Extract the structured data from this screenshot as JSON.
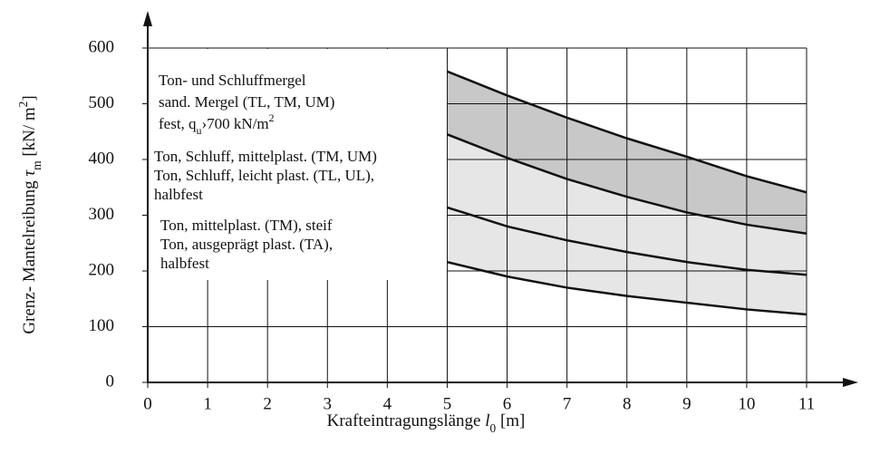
{
  "chart_data": {
    "type": "line",
    "x_label": [
      {
        "text": "Krafteintragungslänge "
      },
      {
        "text": "l",
        "italic": true
      },
      {
        "text": "0",
        "sub": true
      },
      {
        "text": " [m]"
      }
    ],
    "y_label": [
      {
        "text": "Grenz- Mantelreibung "
      },
      {
        "text": "τ",
        "italic": true
      },
      {
        "text": "m",
        "sub": true
      },
      {
        "text": " [kN/ m"
      },
      {
        "text": "2",
        "sup": true
      },
      {
        "text": "]"
      }
    ],
    "x": [
      5,
      6,
      7,
      8,
      9,
      10,
      11
    ],
    "series": [
      {
        "color": "#111111",
        "fill": "#c8c8c8",
        "values": [
          558,
          515,
          475,
          438,
          405,
          370,
          341
        ]
      },
      {
        "color": "#111111",
        "fill": "#e6e6e6",
        "values": [
          445,
          403,
          365,
          333,
          305,
          283,
          267
        ]
      },
      {
        "color": "#111111",
        "fill": "#e6e6e6",
        "values": [
          314,
          280,
          255,
          234,
          216,
          202,
          193
        ]
      },
      {
        "color": "#111111",
        "values": [
          216,
          190,
          170,
          155,
          143,
          131,
          122
        ]
      }
    ],
    "xlim": [
      0,
      11
    ],
    "ylim": [
      0,
      600
    ],
    "xticks": [
      0,
      1,
      2,
      3,
      4,
      5,
      6,
      7,
      8,
      9,
      10,
      11
    ],
    "yticks": [
      0,
      100,
      200,
      300,
      400,
      500,
      600
    ],
    "grid": true,
    "annotations": [
      [
        [
          {
            "text": "Ton- und Schluffmergel"
          }
        ],
        [
          {
            "text": "sand. Mergel (TL, TM, UM)"
          }
        ],
        [
          {
            "text": "fest, q"
          },
          {
            "text": "u",
            "sub": true
          },
          {
            "text": "›700 kN/m"
          },
          {
            "text": "2",
            "sup": true
          }
        ]
      ],
      [
        [
          {
            "text": "Ton, Schluff, mittelplast. (TM, UM)"
          }
        ],
        [
          {
            "text": "Ton, Schluff, leicht plast. (TL, UL),"
          }
        ],
        [
          {
            "text": "halbfest"
          }
        ]
      ],
      [
        [
          {
            "text": "Ton, mittelplast. (TM), steif"
          }
        ],
        [
          {
            "text": "Ton, ausgeprägt plast. (TA),"
          }
        ],
        [
          {
            "text": "halbfest"
          }
        ]
      ]
    ]
  }
}
